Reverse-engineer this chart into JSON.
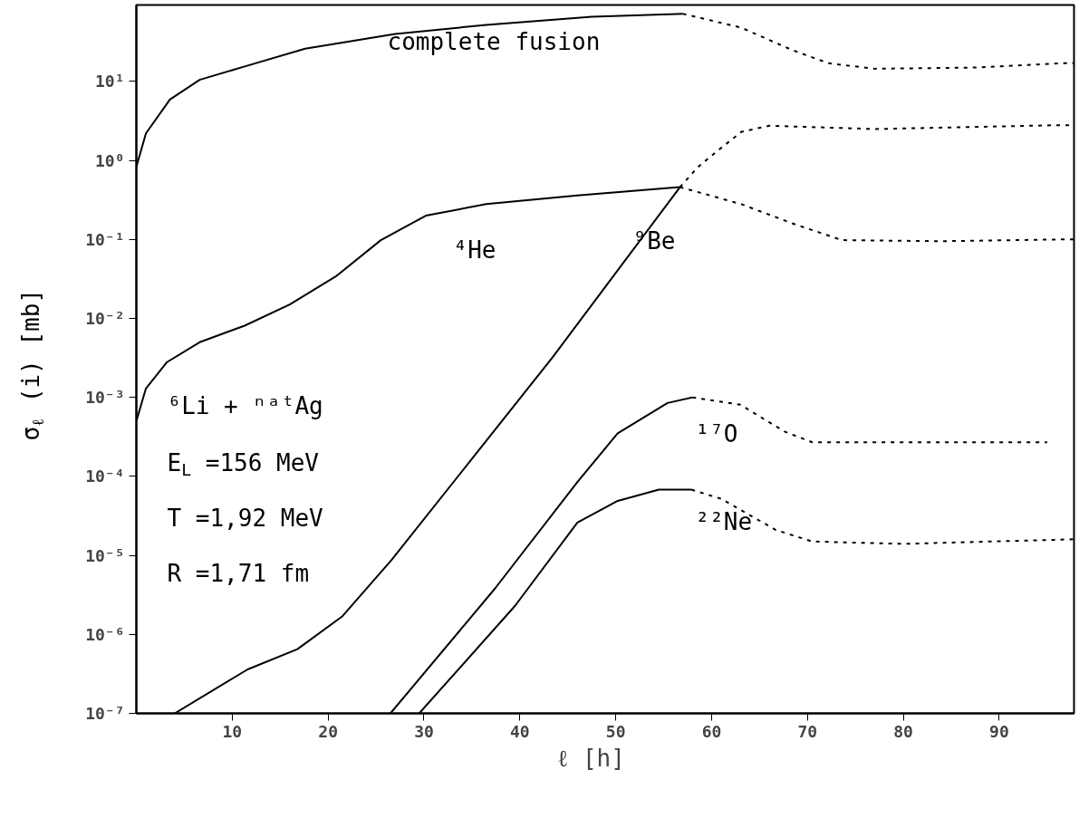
{
  "chart_data": {
    "type": "line",
    "xlabel": "ℓ   [h]",
    "ylabel": "σ$_{ℓ}$ (i)   [mb]",
    "log": "y",
    "grid": false,
    "marker": "none",
    "xlim": [
      0,
      97.8
    ],
    "xticks": [
      10,
      20,
      30,
      40,
      50,
      60,
      70,
      80,
      90
    ],
    "ylim": [
      1e-07,
      93
    ],
    "yticks": [
      {
        "value": 1e-07,
        "label": "10⁻⁷"
      },
      {
        "value": 1e-06,
        "label": "10⁻⁶"
      },
      {
        "value": 1e-05,
        "label": "10⁻⁵"
      },
      {
        "value": 0.0001,
        "label": "10⁻⁴"
      },
      {
        "value": 0.001,
        "label": "10⁻³"
      },
      {
        "value": 0.01,
        "label": "10⁻²"
      },
      {
        "value": 0.1,
        "label": "10⁻¹"
      },
      {
        "value": 1,
        "label": "10⁰"
      },
      {
        "value": 10,
        "label": "10¹"
      }
    ],
    "series": [
      {
        "color": "#000000",
        "line_style": "solid",
        "x": [
          0,
          1,
          3.5,
          6.6,
          11.3,
          17.6,
          27,
          36.5,
          47.5,
          57
        ],
        "values": [
          0.83,
          2.2,
          5.9,
          10.5,
          15.5,
          26,
          40,
          52,
          66,
          72
        ]
      },
      {
        "color": "#000000",
        "line_style": "dotted",
        "x": [
          57,
          63.1,
          68.4,
          72.2,
          77,
          87.5,
          96.3,
          97.8
        ],
        "values": [
          72,
          48,
          25,
          17,
          14.5,
          15,
          17,
          17
        ]
      },
      {
        "color": "#000000",
        "line_style": "solid",
        "x": [
          0,
          1,
          3.2,
          6.6,
          11.3,
          16,
          20.8,
          25.5,
          30.2,
          36.5,
          46,
          56.7
        ],
        "values": [
          0.0005,
          0.0013,
          0.0028,
          0.005,
          0.0081,
          0.015,
          0.034,
          0.098,
          0.2,
          0.28,
          0.36,
          0.46
        ]
      },
      {
        "color": "#000000",
        "line_style": "dotted",
        "x": [
          56.7,
          63.1,
          68.4,
          73.6,
          84,
          96.3,
          97.8
        ],
        "values": [
          0.46,
          0.28,
          0.16,
          0.098,
          0.095,
          0.1,
          0.1
        ]
      },
      {
        "color": "#000000",
        "line_style": "solid",
        "x": [
          4,
          11.6,
          16.8,
          21.5,
          26.6,
          43.4,
          56.7
        ],
        "values": [
          1e-07,
          3.6e-07,
          6.5e-07,
          1.7e-06,
          8.7e-06,
          0.0032,
          0.46
        ]
      },
      {
        "color": "#000000",
        "line_style": "dotted",
        "x": [
          56.7,
          58.6,
          60.7,
          63.1,
          66,
          77,
          96.3,
          97.8
        ],
        "values": [
          0.46,
          0.83,
          1.35,
          2.3,
          2.75,
          2.5,
          2.8,
          2.8
        ]
      },
      {
        "color": "#000000",
        "line_style": "solid",
        "x": [
          26.5,
          37.4,
          46,
          50.2,
          55.4,
          58
        ],
        "values": [
          1e-07,
          3.8e-06,
          8.5e-05,
          0.00035,
          0.00085,
          0.001
        ]
      },
      {
        "color": "#000000",
        "line_style": "dotted",
        "x": [
          58,
          63,
          67.6,
          70.5,
          80,
          95
        ],
        "values": [
          0.001,
          0.00081,
          0.00037,
          0.00027,
          0.00027,
          0.00027
        ]
      },
      {
        "color": "#000000",
        "line_style": "solid",
        "x": [
          29.5,
          39.5,
          46,
          50.2,
          54.5,
          57.9
        ],
        "values": [
          1e-07,
          2.3e-06,
          2.6e-05,
          4.9e-05,
          6.8e-05,
          6.8e-05
        ]
      },
      {
        "color": "#000000",
        "line_style": "dotted",
        "x": [
          57.9,
          61,
          66.7,
          70.5,
          80,
          97.8
        ],
        "values": [
          6.8e-05,
          5.2e-05,
          2.1e-05,
          1.5e-05,
          1.4e-05,
          1.6e-05
        ]
      }
    ],
    "annotations": [
      "complete fusion",
      "⁴He",
      "⁹Be",
      "¹⁷O",
      "²²Ne",
      "⁶Li + ⁿᵃᵗAg",
      "E$_{L}$ =156 MeV",
      "T   =1,92 MeV",
      "R   =1,71 fm"
    ]
  }
}
